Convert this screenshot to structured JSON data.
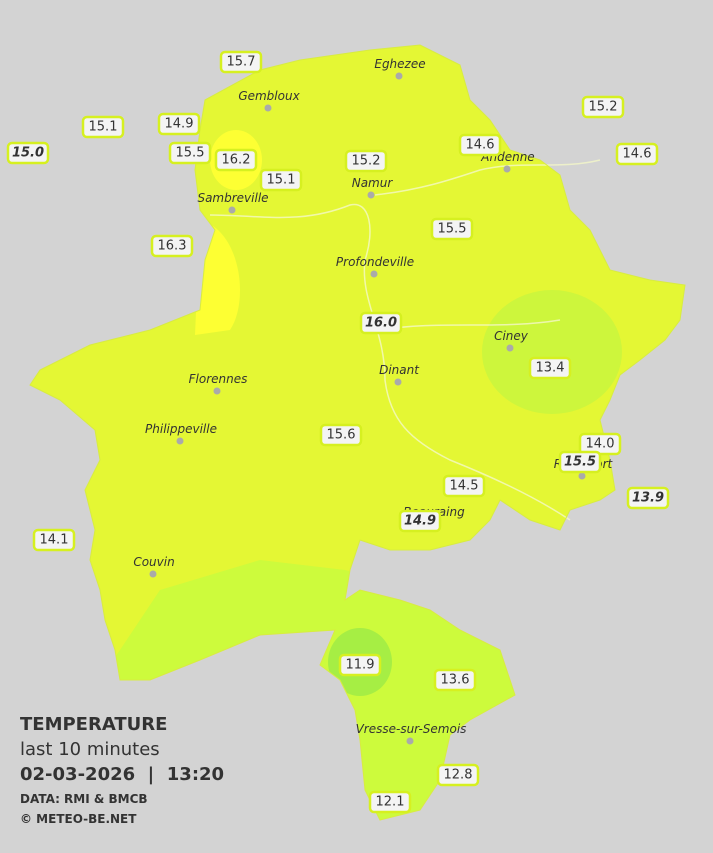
{
  "towns": [
    "Eghezee",
    "Gembloux",
    "Andenne",
    "Namur",
    "Sambreville",
    "Profondeville",
    "Ciney",
    "Dinant",
    "Florennes",
    "Philippeville",
    "Beauraing",
    "Rochefort",
    "Couvin",
    "Vresse-sur-Semois"
  ],
  "stations": [
    "15.7",
    "15.1",
    "14.9",
    "15.0",
    "15.5",
    "16.2",
    "15.1",
    "15.2",
    "14.6",
    "15.2",
    "14.6",
    "15.5",
    "16.3",
    "16.0",
    "13.4",
    "15.6",
    "14.0",
    "15.5",
    "14.5",
    "14.9",
    "13.9",
    "14.1",
    "11.9",
    "13.6",
    "12.8",
    "12.1"
  ],
  "legend": {
    "title": "TEMPERATURE",
    "period": "last 10 minutes",
    "datetime": "02-03-2026  |  13:20",
    "source": "DATA: RMI & BMCB",
    "copyright": "© METEO-BE.NET"
  }
}
